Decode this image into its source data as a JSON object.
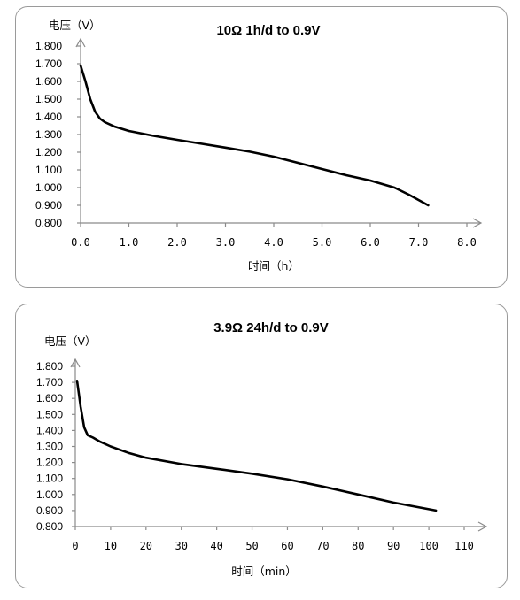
{
  "chart_data": [
    {
      "type": "line",
      "title": "10Ω 1h/d to 0.9V",
      "ylabel": "电压（V）",
      "xlabel": "时间（h）",
      "xlim": [
        0,
        8
      ],
      "ylim": [
        0.8,
        1.8
      ],
      "x_ticks": [
        "0.0",
        "1.0",
        "2.0",
        "3.0",
        "4.0",
        "5.0",
        "6.0",
        "7.0",
        "8.0"
      ],
      "y_ticks": [
        "0.800",
        "0.900",
        "1.000",
        "1.100",
        "1.200",
        "1.300",
        "1.400",
        "1.500",
        "1.600",
        "1.700",
        "1.800"
      ],
      "grid": false,
      "series": [
        {
          "x": [
            0.0,
            0.1,
            0.2,
            0.3,
            0.4,
            0.5,
            0.7,
            1.0,
            1.5,
            2.0,
            2.5,
            3.0,
            3.5,
            4.0,
            4.5,
            5.0,
            5.5,
            6.0,
            6.5,
            6.8,
            7.0,
            7.2
          ],
          "values": [
            1.69,
            1.6,
            1.5,
            1.43,
            1.39,
            1.37,
            1.345,
            1.32,
            1.293,
            1.27,
            1.248,
            1.226,
            1.203,
            1.175,
            1.14,
            1.105,
            1.07,
            1.04,
            1.0,
            0.96,
            0.93,
            0.9
          ]
        }
      ]
    },
    {
      "type": "line",
      "title": "3.9Ω 24h/d to 0.9V",
      "ylabel": "电压（V）",
      "xlabel": "时间（min）",
      "xlim": [
        0,
        110
      ],
      "ylim": [
        0.8,
        1.8
      ],
      "x_ticks": [
        "0",
        "10",
        "20",
        "30",
        "40",
        "50",
        "60",
        "70",
        "80",
        "90",
        "100",
        "110"
      ],
      "y_ticks": [
        "0.800",
        "0.900",
        "1.000",
        "1.100",
        "1.200",
        "1.300",
        "1.400",
        "1.500",
        "1.600",
        "1.700",
        "1.800"
      ],
      "grid": false,
      "series": [
        {
          "x": [
            0.5,
            1.5,
            2.5,
            3.5,
            5,
            7,
            10,
            15,
            20,
            30,
            40,
            50,
            60,
            70,
            80,
            90,
            102
          ],
          "values": [
            1.71,
            1.55,
            1.42,
            1.37,
            1.355,
            1.33,
            1.3,
            1.26,
            1.23,
            1.19,
            1.16,
            1.13,
            1.095,
            1.05,
            1.0,
            0.95,
            0.9
          ]
        }
      ]
    }
  ]
}
